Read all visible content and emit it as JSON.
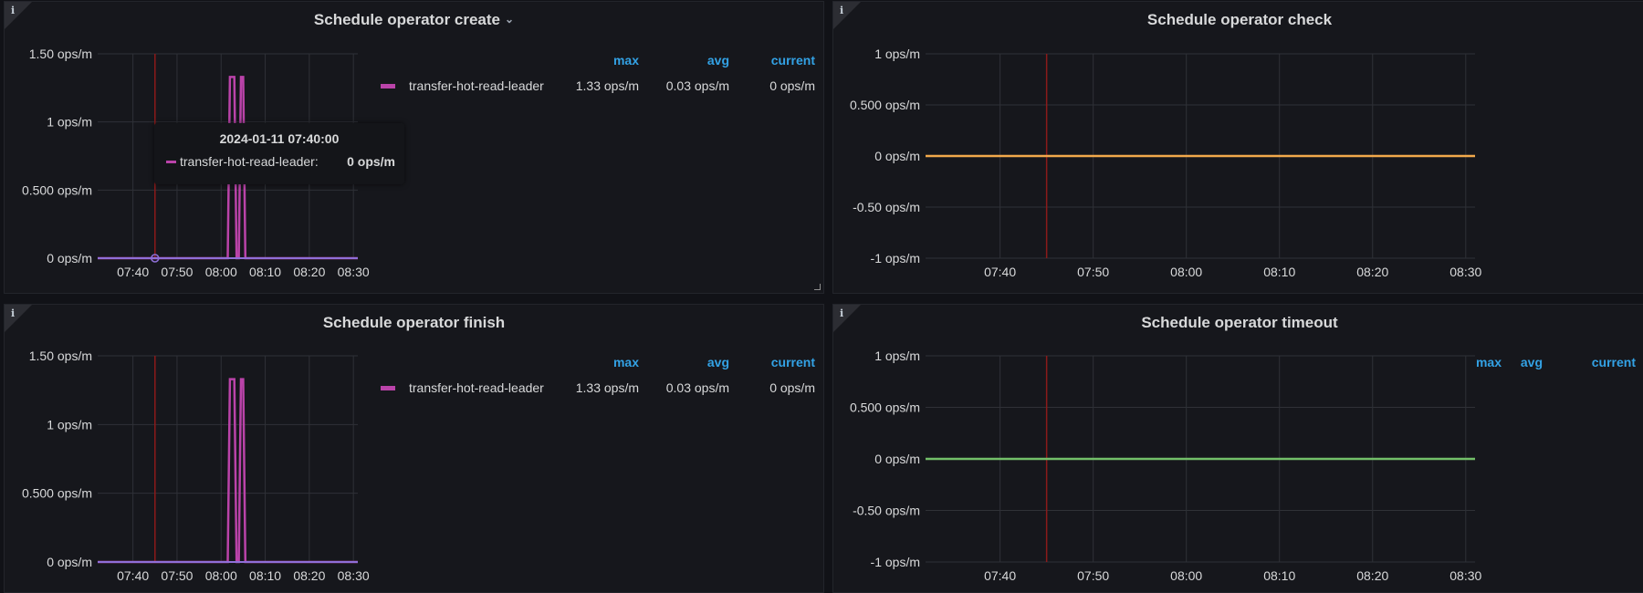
{
  "panels": [
    {
      "title": "Schedule operator create",
      "legend": {
        "headers": [
          "max",
          "avg",
          "current"
        ],
        "series": [
          {
            "name": "transfer-hot-read-leader",
            "max": "1.33 ops/m",
            "avg": "0.03 ops/m",
            "current": "0 ops/m"
          }
        ]
      },
      "tooltip": {
        "time": "2024-01-11 07:40:00",
        "series": "transfer-hot-read-leader:",
        "value": "0 ops/m"
      }
    },
    {
      "title": "Schedule operator check",
      "legend": {
        "headers": [
          "max",
          "avg",
          "current"
        ]
      }
    },
    {
      "title": "Schedule operator finish",
      "legend": {
        "headers": [
          "max",
          "avg",
          "current"
        ],
        "series": [
          {
            "name": "transfer-hot-read-leader",
            "max": "1.33 ops/m",
            "avg": "0.03 ops/m",
            "current": "0 ops/m"
          }
        ]
      }
    },
    {
      "title": "Schedule operator timeout",
      "legend": {
        "headers": [
          "max",
          "avg",
          "current"
        ]
      }
    }
  ],
  "colors": {
    "series_purple": "#ba43a9",
    "series_orange": "#f2a94b",
    "series_green": "#73bf69",
    "header_blue": "#33a2e5",
    "marker_red": "#8b1a1a"
  },
  "chart_data": [
    {
      "type": "line",
      "title": "Schedule operator create",
      "ylim": [
        0,
        1.5
      ],
      "yticks": [
        0,
        0.5,
        1,
        1.5
      ],
      "ytick_labels": [
        "0 ops/m",
        "0.500 ops/m",
        "1 ops/m",
        "1.50 ops/m"
      ],
      "xlim": [
        "07:32",
        "08:31"
      ],
      "xtick_labels": [
        "07:40",
        "07:50",
        "08:00",
        "08:10",
        "08:20",
        "08:30"
      ],
      "marker_time": "07:45",
      "series": [
        {
          "name": "transfer-hot-read-leader",
          "color": "#ba43a9",
          "points": [
            [
              "07:32",
              0
            ],
            [
              "08:01.5",
              0
            ],
            [
              "08:02",
              1.33
            ],
            [
              "08:03",
              1.33
            ],
            [
              "08:03.5",
              0
            ],
            [
              "08:04",
              0
            ],
            [
              "08:04.5",
              1.33
            ],
            [
              "08:05",
              1.33
            ],
            [
              "08:05.5",
              0
            ],
            [
              "08:31",
              0
            ]
          ]
        }
      ],
      "baseline_color": "#8f6fd8"
    },
    {
      "type": "line",
      "title": "Schedule operator check",
      "ylim": [
        -1,
        1
      ],
      "yticks": [
        -1,
        -0.5,
        0,
        0.5,
        1
      ],
      "ytick_labels": [
        "-1 ops/m",
        "-0.50 ops/m",
        "0 ops/m",
        "0.500 ops/m",
        "1 ops/m"
      ],
      "xlim": [
        "07:32",
        "08:31"
      ],
      "xtick_labels": [
        "07:40",
        "07:50",
        "08:00",
        "08:10",
        "08:20",
        "08:30"
      ],
      "marker_time": "07:45",
      "series": [
        {
          "color": "#f2a94b",
          "points": [
            [
              "07:32",
              0
            ],
            [
              "08:31",
              0
            ]
          ]
        }
      ]
    },
    {
      "type": "line",
      "title": "Schedule operator finish",
      "ylim": [
        0,
        1.5
      ],
      "yticks": [
        0,
        0.5,
        1,
        1.5
      ],
      "ytick_labels": [
        "0 ops/m",
        "0.500 ops/m",
        "1 ops/m",
        "1.50 ops/m"
      ],
      "xlim": [
        "07:32",
        "08:31"
      ],
      "xtick_labels": [
        "07:40",
        "07:50",
        "08:00",
        "08:10",
        "08:20",
        "08:30"
      ],
      "marker_time": "07:45",
      "series": [
        {
          "name": "transfer-hot-read-leader",
          "color": "#ba43a9",
          "points": [
            [
              "07:32",
              0
            ],
            [
              "08:01.5",
              0
            ],
            [
              "08:02",
              1.33
            ],
            [
              "08:03",
              1.33
            ],
            [
              "08:03.5",
              0
            ],
            [
              "08:04",
              0
            ],
            [
              "08:04.5",
              1.33
            ],
            [
              "08:05",
              1.33
            ],
            [
              "08:05.5",
              0
            ],
            [
              "08:31",
              0
            ]
          ]
        }
      ],
      "baseline_color": "#8f6fd8"
    },
    {
      "type": "line",
      "title": "Schedule operator timeout",
      "ylim": [
        -1,
        1
      ],
      "yticks": [
        -1,
        -0.5,
        0,
        0.5,
        1
      ],
      "ytick_labels": [
        "-1 ops/m",
        "-0.50 ops/m",
        "0 ops/m",
        "0.500 ops/m",
        "1 ops/m"
      ],
      "xlim": [
        "07:32",
        "08:31"
      ],
      "xtick_labels": [
        "07:40",
        "07:50",
        "08:00",
        "08:10",
        "08:20",
        "08:30"
      ],
      "marker_time": "07:45",
      "series": [
        {
          "color": "#73bf69",
          "points": [
            [
              "07:32",
              0
            ],
            [
              "08:31",
              0
            ]
          ]
        }
      ]
    }
  ]
}
